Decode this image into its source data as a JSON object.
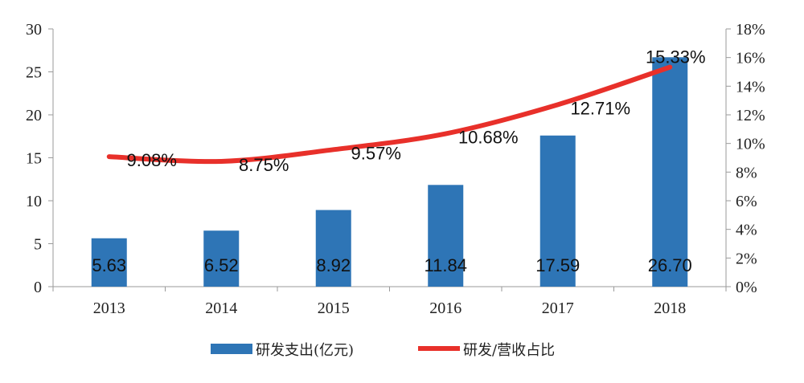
{
  "chart_data": {
    "type": "bar",
    "categories": [
      "2013",
      "2014",
      "2015",
      "2016",
      "2017",
      "2018"
    ],
    "series": [
      {
        "name": "研发支出(亿元)",
        "type": "bar",
        "axis": "left",
        "color": "#2E75B6",
        "values": [
          5.63,
          6.52,
          8.92,
          11.84,
          17.59,
          26.7
        ],
        "labels": [
          "5.63",
          "6.52",
          "8.92",
          "11.84",
          "17.59",
          "26.70"
        ]
      },
      {
        "name": "研发/营收占比",
        "type": "line",
        "axis": "right",
        "color": "#E8302A",
        "values": [
          9.08,
          8.75,
          9.57,
          10.68,
          12.71,
          15.33
        ],
        "labels": [
          "9.08%",
          "8.75%",
          "9.57%",
          "10.68%",
          "12.71%",
          "15.33%"
        ]
      }
    ],
    "y_left": {
      "min": 0,
      "max": 30,
      "ticks": [
        "0",
        "5",
        "10",
        "15",
        "20",
        "25",
        "30"
      ]
    },
    "y_right": {
      "min": 0,
      "max": 18,
      "ticks": [
        "0%",
        "2%",
        "4%",
        "6%",
        "8%",
        "10%",
        "12%",
        "14%",
        "16%",
        "18%"
      ]
    },
    "legend_position": "bottom",
    "grid": false
  }
}
